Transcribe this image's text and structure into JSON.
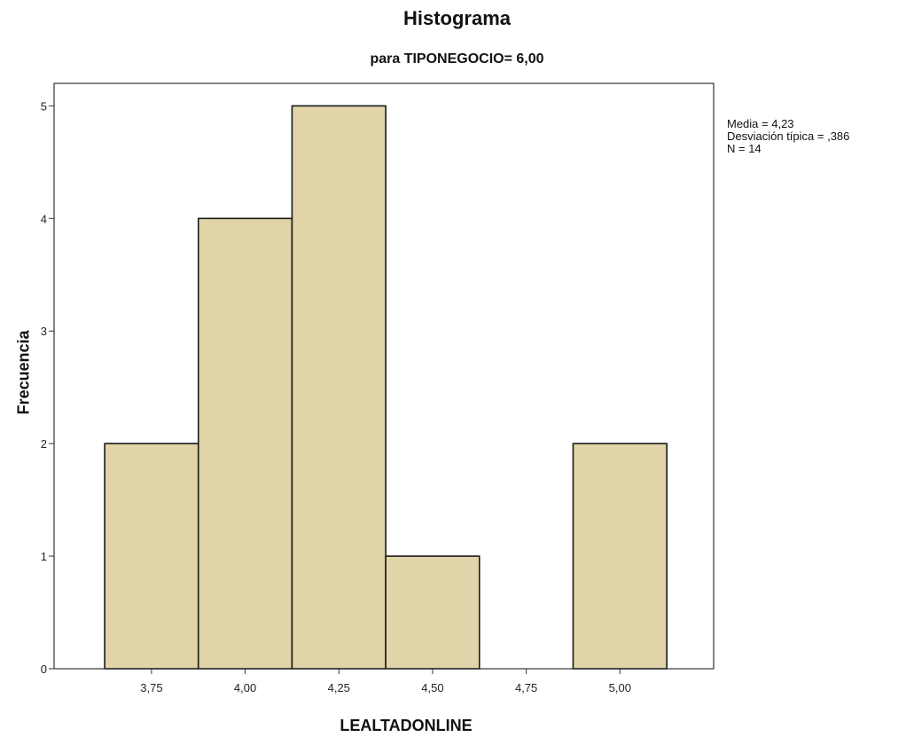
{
  "chart_data": {
    "type": "bar",
    "title": "Histograma",
    "subtitle": "para TIPONEGOCIO= 6,00",
    "xlabel": "LEALTADONLINE",
    "ylabel": "Frecuencia",
    "bins": [
      {
        "from": 3.625,
        "to": 3.875,
        "value": 2
      },
      {
        "from": 3.875,
        "to": 4.125,
        "value": 4
      },
      {
        "from": 4.125,
        "to": 4.375,
        "value": 5
      },
      {
        "from": 4.375,
        "to": 4.625,
        "value": 1
      },
      {
        "from": 4.625,
        "to": 4.875,
        "value": 0
      },
      {
        "from": 4.875,
        "to": 5.125,
        "value": 2
      }
    ],
    "xlim": [
      3.49,
      5.25
    ],
    "ylim": [
      0,
      5.2
    ],
    "x_ticks": [
      3.75,
      4.0,
      4.25,
      4.5,
      4.75,
      5.0
    ],
    "x_tick_labels": [
      "3,75",
      "4,00",
      "4,25",
      "4,50",
      "4,75",
      "5,00"
    ],
    "y_ticks": [
      0,
      1,
      2,
      3,
      4,
      5
    ],
    "y_tick_labels": [
      "0",
      "1",
      "2",
      "3",
      "4",
      "5"
    ],
    "grid": false,
    "bar_color": "#e0d4a8",
    "bar_edge_color": "#1a1a1a",
    "stats": [
      "Media = 4,23",
      "Desviación típica = ,386",
      "N = 14"
    ]
  }
}
